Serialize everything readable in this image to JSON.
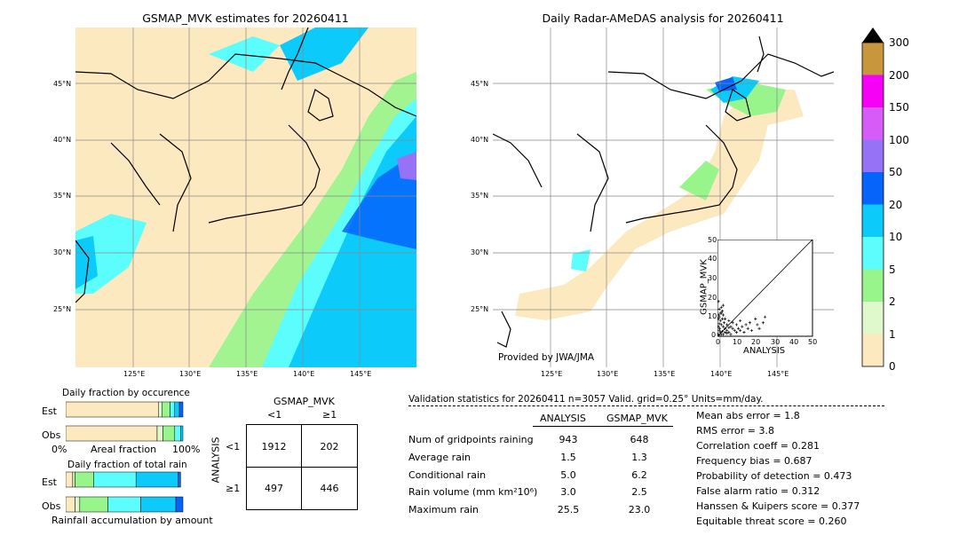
{
  "maps": {
    "left": {
      "title": "GSMAP_MVK estimates for 20260411",
      "lat_labels": [
        "45°N",
        "40°N",
        "35°N",
        "30°N",
        "25°N"
      ],
      "lon_labels": [
        "125°E",
        "130°E",
        "135°E",
        "140°E",
        "145°E"
      ]
    },
    "right": {
      "title": "Daily Radar-AMeDAS analysis for 20260411",
      "lat_labels": [
        "45°N",
        "40°N",
        "35°N",
        "30°N",
        "25°N"
      ],
      "lon_labels": [
        "125°E",
        "130°E",
        "135°E",
        "140°E",
        "145°E"
      ],
      "credit": "Provided by JWA/JMA"
    }
  },
  "colorbar": {
    "ticks": [
      "0",
      "1",
      "2",
      "5",
      "10",
      "20",
      "50",
      "100",
      "150",
      "200",
      "300"
    ],
    "colors": [
      "#fde9c0",
      "#dff8cc",
      "#98f58c",
      "#5cfdfd",
      "#0ccbfa",
      "#0664fb",
      "#9673f6",
      "#d75cf7",
      "#f600f6",
      "#c8963c"
    ],
    "extend_color": "#000000"
  },
  "scatter": {
    "xlabel": "ANALYSIS",
    "ylabel": "GSMAP_MVK",
    "ticks": [
      "0",
      "10",
      "20",
      "30",
      "40",
      "50"
    ]
  },
  "fraction_charts": {
    "occurrence_title": "Daily fraction by occurence",
    "total_title": "Daily fraction of total rain",
    "est_label": "Est",
    "obs_label": "Obs",
    "axis_left": "0%",
    "axis_mid": "Areal fraction",
    "axis_right": "100%",
    "bottom_label": "Rainfall accumulation by amount"
  },
  "contingency": {
    "title": "GSMAP_MVK",
    "col_lt": "<1",
    "col_ge": "≥1",
    "row_axis": "ANALYSIS",
    "row_lt": "<1",
    "row_ge": "≥1",
    "cells": [
      "1912",
      "202",
      "497",
      "446"
    ]
  },
  "validation": {
    "header": "Validation statistics for 20260411  n=3057 Valid. grid=0.25° Units=mm/day.",
    "col_analysis": "ANALYSIS",
    "col_gsmap": "GSMAP_MVK",
    "rows": [
      {
        "label": "Num of gridpoints raining",
        "analysis": "943",
        "gsmap": "648"
      },
      {
        "label": "Average rain",
        "analysis": "1.5",
        "gsmap": "1.3"
      },
      {
        "label": "Conditional rain",
        "analysis": "5.0",
        "gsmap": "6.2"
      },
      {
        "label": "Rain volume (mm km²10⁶)",
        "analysis": "3.0",
        "gsmap": "2.5"
      },
      {
        "label": "Maximum rain",
        "analysis": "25.5",
        "gsmap": "23.0"
      }
    ],
    "scores": [
      "Mean abs error =    1.8",
      "RMS error =    3.8",
      "Correlation coeff =  0.281",
      "Frequency bias =  0.687",
      "Probability of detection =  0.473",
      "False alarm ratio =  0.312",
      "Hanssen & Kuipers score =  0.377",
      "Equitable threat score =  0.260"
    ]
  },
  "chart_data": [
    {
      "type": "scatter",
      "title": "",
      "xlabel": "ANALYSIS",
      "ylabel": "GSMAP_MVK",
      "xlim": [
        0,
        50
      ],
      "ylim": [
        0,
        50
      ],
      "points": [
        [
          0.5,
          18
        ],
        [
          1,
          14
        ],
        [
          1,
          10
        ],
        [
          1.5,
          8
        ],
        [
          2,
          12
        ],
        [
          2,
          6
        ],
        [
          2.5,
          9
        ],
        [
          3,
          5
        ],
        [
          3,
          11
        ],
        [
          3.5,
          7
        ],
        [
          4,
          4
        ],
        [
          4,
          9
        ],
        [
          5,
          6
        ],
        [
          5,
          3
        ],
        [
          6,
          8
        ],
        [
          6,
          2
        ],
        [
          7,
          5
        ],
        [
          7,
          1
        ],
        [
          8,
          4
        ],
        [
          8,
          7
        ],
        [
          9,
          3
        ],
        [
          10,
          6
        ],
        [
          10,
          2
        ],
        [
          11,
          4
        ],
        [
          12,
          3
        ],
        [
          12,
          8
        ],
        [
          13,
          5
        ],
        [
          14,
          2
        ],
        [
          15,
          6
        ],
        [
          16,
          4
        ],
        [
          17,
          7
        ],
        [
          18,
          3
        ],
        [
          20,
          9
        ],
        [
          21,
          6
        ],
        [
          22,
          4
        ],
        [
          24,
          7
        ],
        [
          25,
          10
        ],
        [
          0.5,
          5
        ],
        [
          1,
          3
        ],
        [
          1.5,
          2
        ],
        [
          2,
          1
        ],
        [
          0.3,
          1
        ],
        [
          0.8,
          0.5
        ],
        [
          1.2,
          4
        ],
        [
          2.5,
          2.5
        ],
        [
          3,
          1
        ],
        [
          4,
          2
        ],
        [
          5,
          1.5
        ],
        [
          6,
          4.5
        ],
        [
          0.5,
          9
        ],
        [
          1,
          6.5
        ],
        [
          1.5,
          12
        ],
        [
          2,
          15
        ],
        [
          2.5,
          13
        ],
        [
          3,
          16
        ],
        [
          0.7,
          11
        ]
      ]
    },
    {
      "type": "bar",
      "title": "Daily fraction by occurence",
      "categories": [
        "Est",
        "Obs"
      ],
      "series": [
        {
          "name": "0-1",
          "values": [
            0.79,
            0.78
          ]
        },
        {
          "name": "1-2",
          "values": [
            0.03,
            0.05
          ]
        },
        {
          "name": "2-5",
          "values": [
            0.07,
            0.1
          ]
        },
        {
          "name": "5-10",
          "values": [
            0.04,
            0.05
          ]
        },
        {
          "name": "10-20",
          "values": [
            0.04,
            0.02
          ]
        },
        {
          "name": "20-50",
          "values": [
            0.03,
            0.0
          ]
        }
      ]
    },
    {
      "type": "bar",
      "title": "Daily fraction of total rain",
      "categories": [
        "Est",
        "Obs"
      ],
      "series": [
        {
          "name": "0-1",
          "values": [
            0.06,
            0.08
          ]
        },
        {
          "name": "1-2",
          "values": [
            0.02,
            0.04
          ]
        },
        {
          "name": "2-5",
          "values": [
            0.16,
            0.24
          ]
        },
        {
          "name": "5-10",
          "values": [
            0.36,
            0.28
          ]
        },
        {
          "name": "10-20",
          "values": [
            0.36,
            0.3
          ]
        },
        {
          "name": "20-50",
          "values": [
            0.02,
            0.06
          ]
        }
      ]
    },
    {
      "type": "table",
      "title": "GSMAP_MVK",
      "columns": [
        "<1",
        "≥1"
      ],
      "rows": [
        [
          "1912",
          "202"
        ],
        [
          "497",
          "446"
        ]
      ]
    }
  ]
}
